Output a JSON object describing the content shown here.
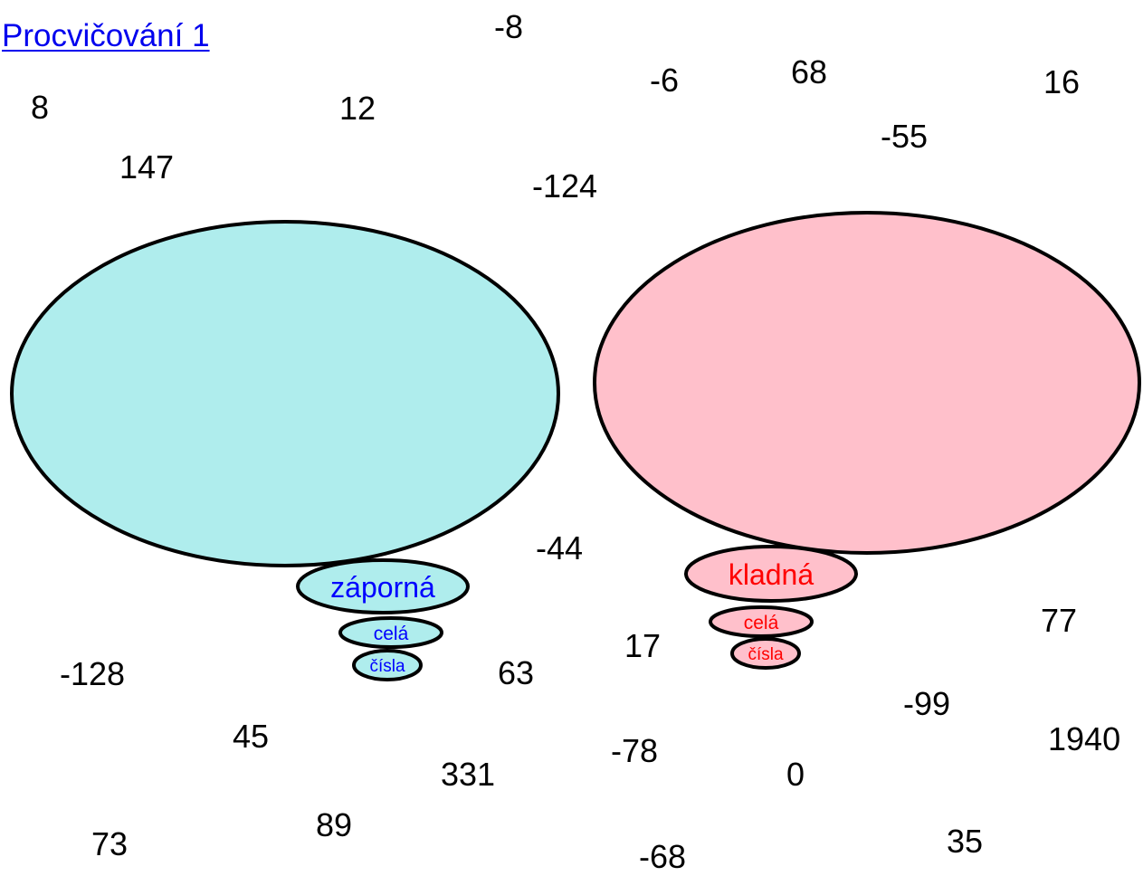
{
  "title": "Procvičování 1",
  "colors": {
    "negative_fill": "#afeded",
    "negative_text": "#0000ff",
    "positive_fill": "#ffc0cb",
    "positive_text": "#ff0000",
    "number_text": "#000000",
    "link": "#0000ee",
    "outline": "#000000"
  },
  "sets": {
    "negative": {
      "label_1": "záporná",
      "label_2": "celá",
      "label_3": "čísla"
    },
    "positive": {
      "label_1": "kladná",
      "label_2": "celá",
      "label_3": "čísla"
    }
  },
  "numbers": [
    "-8",
    "-6",
    "68",
    "16",
    "8",
    "12",
    "-55",
    "147",
    "-124",
    "-44",
    "77",
    "17",
    "-128",
    "63",
    "-99",
    "45",
    "1940",
    "-78",
    "331",
    "0",
    "89",
    "35",
    "73",
    "-68"
  ]
}
